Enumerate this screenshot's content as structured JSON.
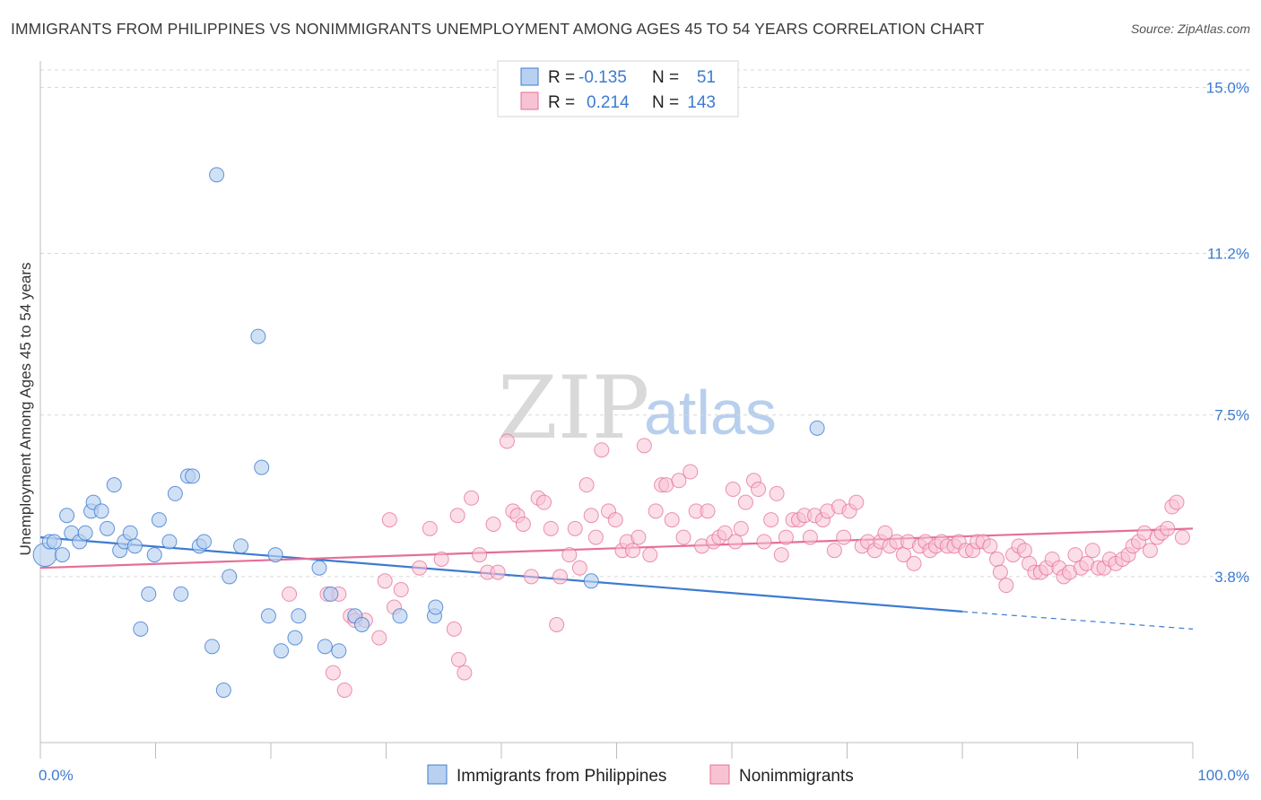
{
  "header": {
    "title": "IMMIGRANTS FROM PHILIPPINES VS NONIMMIGRANTS UNEMPLOYMENT AMONG AGES 45 TO 54 YEARS CORRELATION CHART",
    "source": "Source: ZipAtlas.com"
  },
  "watermark": {
    "zip": "ZIP",
    "atlas": "atlas"
  },
  "colors": {
    "blue": "#3d7bd1",
    "blue_fill": "#b9d1f0",
    "pink": "#e56f98",
    "pink_fill": "#f7c3d3",
    "grid": "#d8d8d8"
  },
  "legend": {
    "rows": [
      {
        "r_label": "R =",
        "r_value": "-0.135",
        "n_label": "N =",
        "n_value": "51"
      },
      {
        "r_label": "R =",
        "r_value": "0.214",
        "n_label": "N =",
        "n_value": "143"
      }
    ]
  },
  "bottom_legend": {
    "items": [
      "Immigrants from Philippines",
      "Nonimmigrants"
    ]
  },
  "chart_data": {
    "type": "scatter",
    "title": "IMMIGRANTS FROM PHILIPPINES VS NONIMMIGRANTS UNEMPLOYMENT AMONG AGES 45 TO 54 YEARS CORRELATION CHART",
    "ylabel": "Unemployment Among Ages 45 to 54 years",
    "xlabel": "",
    "xlim": [
      0,
      100
    ],
    "ylim": [
      0,
      15.4
    ],
    "x_tick_labels": [
      "0.0%",
      "100.0%"
    ],
    "y_ticks": [
      3.8,
      7.5,
      11.2,
      15.0
    ],
    "y_tick_labels": [
      "3.8%",
      "7.5%",
      "11.2%",
      "15.0%"
    ],
    "grid": true,
    "legend_position": "top-center",
    "series": [
      {
        "name": "Immigrants from Philippines",
        "color": "#3d7bd1",
        "trend": {
          "x": [
            0,
            80
          ],
          "y": [
            4.7,
            3.0
          ],
          "dashed_extension": {
            "x": [
              80,
              100
            ],
            "y": [
              3.0,
              2.6
            ]
          }
        },
        "points": [
          [
            0.4,
            4.3
          ],
          [
            0.8,
            4.6
          ],
          [
            1.2,
            4.6
          ],
          [
            1.9,
            4.3
          ],
          [
            2.3,
            5.2
          ],
          [
            2.7,
            4.8
          ],
          [
            3.4,
            4.6
          ],
          [
            3.9,
            4.8
          ],
          [
            4.4,
            5.3
          ],
          [
            4.6,
            5.5
          ],
          [
            5.3,
            5.3
          ],
          [
            5.8,
            4.9
          ],
          [
            6.4,
            5.9
          ],
          [
            6.9,
            4.4
          ],
          [
            7.3,
            4.6
          ],
          [
            7.8,
            4.8
          ],
          [
            8.2,
            4.5
          ],
          [
            8.7,
            2.6
          ],
          [
            9.4,
            3.4
          ],
          [
            9.9,
            4.3
          ],
          [
            10.3,
            5.1
          ],
          [
            11.2,
            4.6
          ],
          [
            11.7,
            5.7
          ],
          [
            12.2,
            3.4
          ],
          [
            12.8,
            6.1
          ],
          [
            13.2,
            6.1
          ],
          [
            13.8,
            4.5
          ],
          [
            14.2,
            4.6
          ],
          [
            14.9,
            2.2
          ],
          [
            15.3,
            13.0
          ],
          [
            15.9,
            1.2
          ],
          [
            16.4,
            3.8
          ],
          [
            17.4,
            4.5
          ],
          [
            18.9,
            9.3
          ],
          [
            19.2,
            6.3
          ],
          [
            19.8,
            2.9
          ],
          [
            20.4,
            4.3
          ],
          [
            20.9,
            2.1
          ],
          [
            22.1,
            2.4
          ],
          [
            22.4,
            2.9
          ],
          [
            24.2,
            4.0
          ],
          [
            24.7,
            2.2
          ],
          [
            25.2,
            3.4
          ],
          [
            25.9,
            2.1
          ],
          [
            27.3,
            2.9
          ],
          [
            27.9,
            2.7
          ],
          [
            31.2,
            2.9
          ],
          [
            34.2,
            2.9
          ],
          [
            34.3,
            3.1
          ],
          [
            47.8,
            3.7
          ],
          [
            67.4,
            7.2
          ]
        ]
      },
      {
        "name": "Nonimmigrants",
        "color": "#e56f98",
        "trend": {
          "x": [
            0,
            100
          ],
          "y": [
            4.0,
            4.9
          ]
        },
        "points": [
          [
            21.6,
            3.4
          ],
          [
            24.9,
            3.4
          ],
          [
            25.4,
            1.6
          ],
          [
            25.9,
            3.4
          ],
          [
            26.4,
            1.2
          ],
          [
            26.9,
            2.9
          ],
          [
            27.3,
            2.8
          ],
          [
            28.2,
            2.8
          ],
          [
            29.4,
            2.4
          ],
          [
            29.9,
            3.7
          ],
          [
            30.3,
            5.1
          ],
          [
            30.7,
            3.1
          ],
          [
            31.3,
            3.5
          ],
          [
            32.9,
            4.0
          ],
          [
            33.8,
            4.9
          ],
          [
            34.8,
            4.2
          ],
          [
            35.9,
            2.6
          ],
          [
            36.2,
            5.2
          ],
          [
            36.3,
            1.9
          ],
          [
            36.8,
            1.6
          ],
          [
            37.4,
            5.6
          ],
          [
            38.1,
            4.3
          ],
          [
            38.8,
            3.9
          ],
          [
            39.3,
            5.0
          ],
          [
            39.7,
            3.9
          ],
          [
            40.5,
            6.9
          ],
          [
            41.0,
            5.3
          ],
          [
            41.4,
            5.2
          ],
          [
            41.9,
            5.0
          ],
          [
            42.6,
            3.8
          ],
          [
            43.2,
            5.6
          ],
          [
            43.7,
            5.5
          ],
          [
            44.3,
            4.9
          ],
          [
            44.8,
            2.7
          ],
          [
            45.1,
            3.8
          ],
          [
            45.9,
            4.3
          ],
          [
            46.4,
            4.9
          ],
          [
            46.8,
            4.0
          ],
          [
            47.4,
            5.9
          ],
          [
            47.8,
            5.2
          ],
          [
            48.2,
            4.7
          ],
          [
            48.7,
            6.7
          ],
          [
            49.3,
            5.3
          ],
          [
            49.9,
            5.1
          ],
          [
            50.5,
            4.4
          ],
          [
            50.9,
            4.6
          ],
          [
            51.4,
            4.4
          ],
          [
            51.9,
            4.7
          ],
          [
            52.4,
            6.8
          ],
          [
            52.9,
            4.3
          ],
          [
            53.4,
            5.3
          ],
          [
            53.9,
            5.9
          ],
          [
            54.3,
            5.9
          ],
          [
            54.8,
            5.1
          ],
          [
            55.4,
            6.0
          ],
          [
            55.8,
            4.7
          ],
          [
            56.4,
            6.2
          ],
          [
            56.9,
            5.3
          ],
          [
            57.4,
            4.5
          ],
          [
            57.9,
            5.3
          ],
          [
            58.4,
            4.6
          ],
          [
            58.9,
            4.7
          ],
          [
            59.4,
            4.8
          ],
          [
            60.1,
            5.8
          ],
          [
            60.3,
            4.6
          ],
          [
            60.8,
            4.9
          ],
          [
            61.2,
            5.5
          ],
          [
            61.9,
            6.0
          ],
          [
            62.3,
            5.8
          ],
          [
            62.8,
            4.6
          ],
          [
            63.4,
            5.1
          ],
          [
            63.9,
            5.7
          ],
          [
            64.3,
            4.3
          ],
          [
            64.7,
            4.7
          ],
          [
            65.3,
            5.1
          ],
          [
            65.8,
            5.1
          ],
          [
            66.3,
            5.2
          ],
          [
            66.8,
            4.7
          ],
          [
            67.2,
            5.2
          ],
          [
            67.9,
            5.1
          ],
          [
            68.3,
            5.3
          ],
          [
            68.9,
            4.4
          ],
          [
            69.3,
            5.4
          ],
          [
            69.7,
            4.7
          ],
          [
            70.2,
            5.3
          ],
          [
            70.8,
            5.5
          ],
          [
            71.3,
            4.5
          ],
          [
            71.8,
            4.6
          ],
          [
            72.4,
            4.4
          ],
          [
            72.9,
            4.6
          ],
          [
            73.3,
            4.8
          ],
          [
            73.7,
            4.5
          ],
          [
            74.3,
            4.6
          ],
          [
            74.9,
            4.3
          ],
          [
            75.3,
            4.6
          ],
          [
            75.8,
            4.1
          ],
          [
            76.3,
            4.5
          ],
          [
            76.8,
            4.6
          ],
          [
            77.2,
            4.4
          ],
          [
            77.7,
            4.5
          ],
          [
            78.2,
            4.6
          ],
          [
            78.7,
            4.5
          ],
          [
            79.3,
            4.5
          ],
          [
            79.7,
            4.6
          ],
          [
            80.3,
            4.4
          ],
          [
            80.9,
            4.4
          ],
          [
            81.3,
            4.6
          ],
          [
            81.8,
            4.6
          ],
          [
            82.4,
            4.5
          ],
          [
            83.0,
            4.2
          ],
          [
            83.3,
            3.9
          ],
          [
            83.8,
            3.6
          ],
          [
            84.4,
            4.3
          ],
          [
            84.9,
            4.5
          ],
          [
            85.4,
            4.4
          ],
          [
            85.8,
            4.1
          ],
          [
            86.3,
            3.9
          ],
          [
            86.8,
            3.9
          ],
          [
            87.3,
            4.0
          ],
          [
            87.8,
            4.2
          ],
          [
            88.4,
            4.0
          ],
          [
            88.8,
            3.8
          ],
          [
            89.3,
            3.9
          ],
          [
            89.8,
            4.3
          ],
          [
            90.3,
            4.0
          ],
          [
            90.8,
            4.1
          ],
          [
            91.3,
            4.4
          ],
          [
            91.8,
            4.0
          ],
          [
            92.3,
            4.0
          ],
          [
            92.8,
            4.2
          ],
          [
            93.3,
            4.1
          ],
          [
            93.9,
            4.2
          ],
          [
            94.4,
            4.3
          ],
          [
            94.8,
            4.5
          ],
          [
            95.3,
            4.6
          ],
          [
            95.8,
            4.8
          ],
          [
            96.3,
            4.4
          ],
          [
            96.9,
            4.7
          ],
          [
            97.3,
            4.8
          ],
          [
            97.8,
            4.9
          ],
          [
            98.2,
            5.4
          ],
          [
            98.6,
            5.5
          ],
          [
            99.1,
            4.7
          ]
        ]
      }
    ]
  }
}
